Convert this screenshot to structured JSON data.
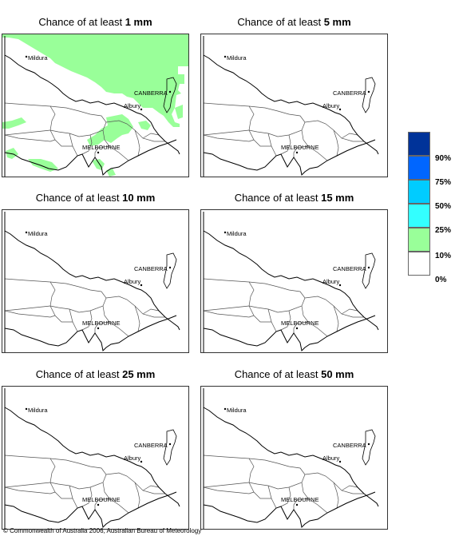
{
  "panels": [
    {
      "title_prefix": "Chance of at least ",
      "amount": "1 mm",
      "shaded": true
    },
    {
      "title_prefix": "Chance of at least ",
      "amount": "5 mm",
      "shaded": false
    },
    {
      "title_prefix": "Chance of at least ",
      "amount": "10 mm",
      "shaded": false
    },
    {
      "title_prefix": "Chance of at least ",
      "amount": "15 mm",
      "shaded": false
    },
    {
      "title_prefix": "Chance of at least ",
      "amount": "25 mm",
      "shaded": false
    },
    {
      "title_prefix": "Chance of at least ",
      "amount": "50 mm",
      "shaded": false
    }
  ],
  "places": {
    "mildura": "Mildura",
    "canberra": "CANBERRA",
    "albury": "Albury",
    "melbourne": "MELBOURNE"
  },
  "legend": {
    "items": [
      {
        "label": "90%",
        "color": "#003399"
      },
      {
        "label": "75%",
        "color": "#0066ff"
      },
      {
        "label": "50%",
        "color": "#00ccff"
      },
      {
        "label": "25%",
        "color": "#33ffff"
      },
      {
        "label": "10%",
        "color": "#99ff99"
      },
      {
        "label": "0%",
        "color": "#ffffff"
      }
    ]
  },
  "copyright": "© Commonwealth of Australia 2006, Australian Bureau of Meteorology"
}
